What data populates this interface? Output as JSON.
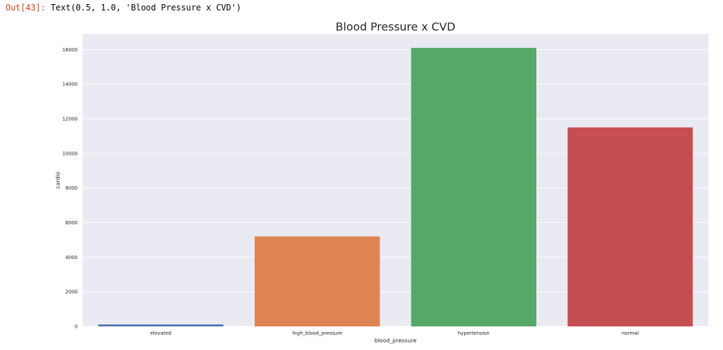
{
  "notebook": {
    "out_prompt": "Out[43]:",
    "out_text": "Text(0.5, 1.0, 'Blood Pressure x CVD')"
  },
  "colors": {
    "plot_background": "#eaeaf2",
    "grid": "#ffffff",
    "text": "#262626",
    "prompt": "#d84315"
  },
  "chart_data": {
    "type": "bar",
    "title": "Blood Pressure x CVD",
    "xlabel": "blood_pressure",
    "ylabel": "cardio",
    "categories": [
      "elevated",
      "high_blood_pressure",
      "hypertension",
      "normal"
    ],
    "values": [
      110,
      5200,
      16100,
      11500
    ],
    "colors": [
      "#4c72b0",
      "#dd8452",
      "#55a868",
      "#c44e52"
    ],
    "ylim": [
      0,
      16900
    ],
    "yticks": [
      0,
      2000,
      4000,
      6000,
      8000,
      10000,
      12000,
      14000,
      16000
    ],
    "grid": true
  }
}
